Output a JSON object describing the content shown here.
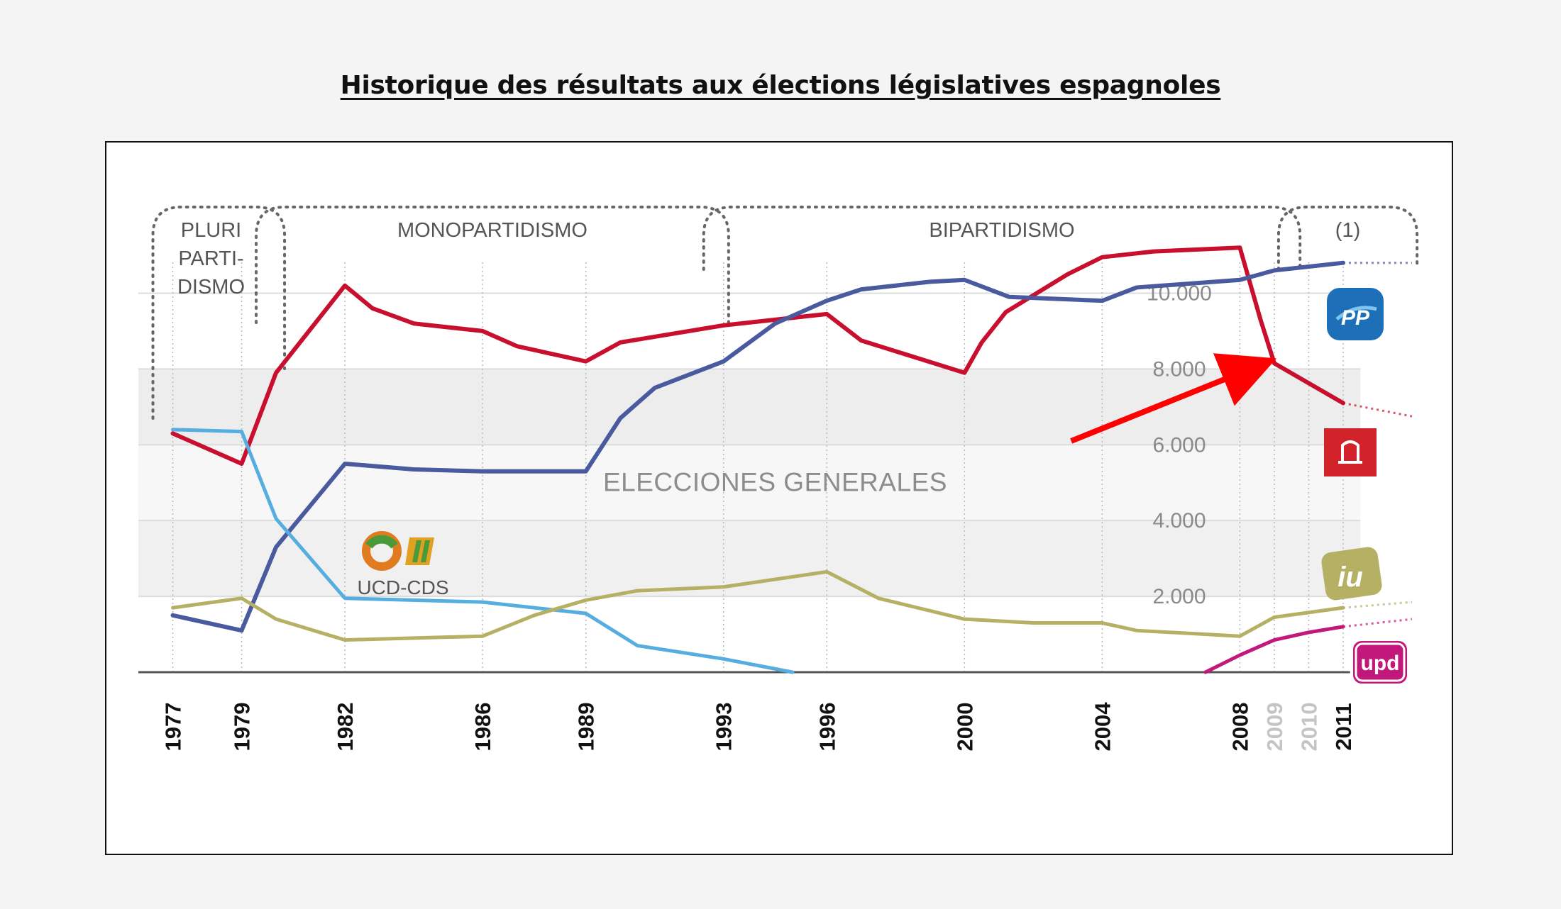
{
  "title": "Historique des résultats aux élections législatives espagnoles",
  "chart_data": {
    "type": "line",
    "title": "Historique des résultats aux élections législatives espagnoles",
    "center_label": "ELECCIONES GENERALES",
    "xlabel": "",
    "ylabel": "",
    "ylim": [
      0,
      11000
    ],
    "yticks": [
      2000,
      4000,
      6000,
      8000,
      10000
    ],
    "ytick_labels": [
      "2.000",
      "4.000",
      "6.000",
      "8.000",
      "10.000"
    ],
    "x_ticks": [
      1977,
      1979,
      1982,
      1986,
      1989,
      1993,
      1996,
      2000,
      2004,
      2008,
      2009,
      2010,
      2011
    ],
    "x_tick_labels": [
      "1977",
      "1979",
      "1982",
      "1986",
      "1989",
      "1993",
      "1996",
      "2000",
      "2004",
      "2008",
      "2009",
      "2010",
      "2011"
    ],
    "x_tick_faded": [
      "2009",
      "2010"
    ],
    "xlim": [
      1976,
      2013
    ],
    "periods": [
      {
        "label": "PLURI PARTI- DISMO",
        "lines": [
          "PLURI",
          "PARTI-",
          "DISMO"
        ],
        "from": 1977,
        "to": 1980
      },
      {
        "label": "MONOPARTIDISMO",
        "lines": [
          "MONOPARTIDISMO"
        ],
        "from": 1980,
        "to": 1992.9
      },
      {
        "label": "BIPARTIDISMO",
        "lines": [
          "BIPARTIDISMO"
        ],
        "from": 1993,
        "to": 2009.5
      },
      {
        "label": "(1)",
        "lines": [
          "(1)"
        ],
        "from": 2009.7,
        "to": 2012.9
      }
    ],
    "series": [
      {
        "name": "PSOE",
        "color": "#c8102e",
        "x": [
          1977,
          1979,
          1980,
          1982,
          1982.8,
          1984,
          1986,
          1987,
          1989,
          1990,
          1993,
          1996,
          1997,
          2000,
          2000.5,
          2001.2,
          2003,
          2004,
          2005.5,
          2008,
          2008.6,
          2009,
          2011
        ],
        "values": [
          6300,
          5500,
          7900,
          10200,
          9600,
          9200,
          9000,
          8600,
          8200,
          8700,
          9150,
          9450,
          8750,
          7900,
          8700,
          9500,
          10500,
          10950,
          11100,
          11200,
          9300,
          8150,
          7100
        ],
        "projection": {
          "x": [
            2011,
            2013
          ],
          "values": [
            7100,
            6750
          ]
        }
      },
      {
        "name": "PP",
        "color": "#4a5a9f",
        "x": [
          1977,
          1979,
          1980,
          1982,
          1984,
          1986,
          1989,
          1990,
          1991,
          1993,
          1994.5,
          1996,
          1997,
          1999,
          2000,
          2001.3,
          2004,
          2005,
          2008,
          2009,
          2011
        ],
        "values": [
          1500,
          1100,
          3300,
          5500,
          5350,
          5300,
          5300,
          6700,
          7500,
          8200,
          9200,
          9800,
          10100,
          10300,
          10350,
          9900,
          9800,
          10150,
          10350,
          10600,
          10800
        ],
        "projection": {
          "x": [
            2011,
            2013
          ],
          "values": [
            10800,
            10800
          ]
        }
      },
      {
        "name": "UCD-CDS",
        "color": "#56aee0",
        "x": [
          1977,
          1979,
          1980,
          1982,
          1986,
          1989,
          1990.5,
          1993,
          1995
        ],
        "values": [
          6400,
          6350,
          4050,
          1950,
          1850,
          1550,
          700,
          350,
          0
        ]
      },
      {
        "name": "IU",
        "color": "#b5b063",
        "x": [
          1977,
          1979,
          1980,
          1982,
          1986,
          1987.5,
          1989,
          1990.5,
          1993,
          1996,
          1997.5,
          2000,
          2002,
          2004,
          2005,
          2008,
          2009,
          2011
        ],
        "values": [
          1700,
          1950,
          1400,
          850,
          950,
          1500,
          1900,
          2150,
          2250,
          2650,
          1950,
          1400,
          1300,
          1300,
          1100,
          950,
          1450,
          1700
        ],
        "projection": {
          "x": [
            2011,
            2013
          ],
          "values": [
            1700,
            1850
          ]
        }
      },
      {
        "name": "UPyD",
        "color": "#c2187c",
        "x": [
          2007,
          2008,
          2009,
          2010,
          2011
        ],
        "values": [
          0,
          450,
          850,
          1050,
          1200
        ],
        "projection": {
          "x": [
            2011,
            2013
          ],
          "values": [
            1200,
            1400
          ]
        }
      }
    ],
    "logos": [
      {
        "name": "pp-logo",
        "text": "PP",
        "color": "#1d70b8",
        "series": "PP"
      },
      {
        "name": "psoe-logo",
        "text": "",
        "color": "#d2232a",
        "series": "PSOE"
      },
      {
        "name": "iu-logo",
        "text": "iu",
        "color": "#b5b063",
        "series": "IU"
      },
      {
        "name": "upyd-logo",
        "text": "upd",
        "color": "#c2187c",
        "series": "UPyD"
      },
      {
        "name": "ucd-cds-logo",
        "text": "UCD-CDS",
        "color": "#e07b1f",
        "series": "UCD-CDS"
      }
    ],
    "annotation_arrow": {
      "color": "#ff0000",
      "from": [
        2003.1,
        6100
      ],
      "to": [
        2008.3,
        8000
      ]
    }
  }
}
